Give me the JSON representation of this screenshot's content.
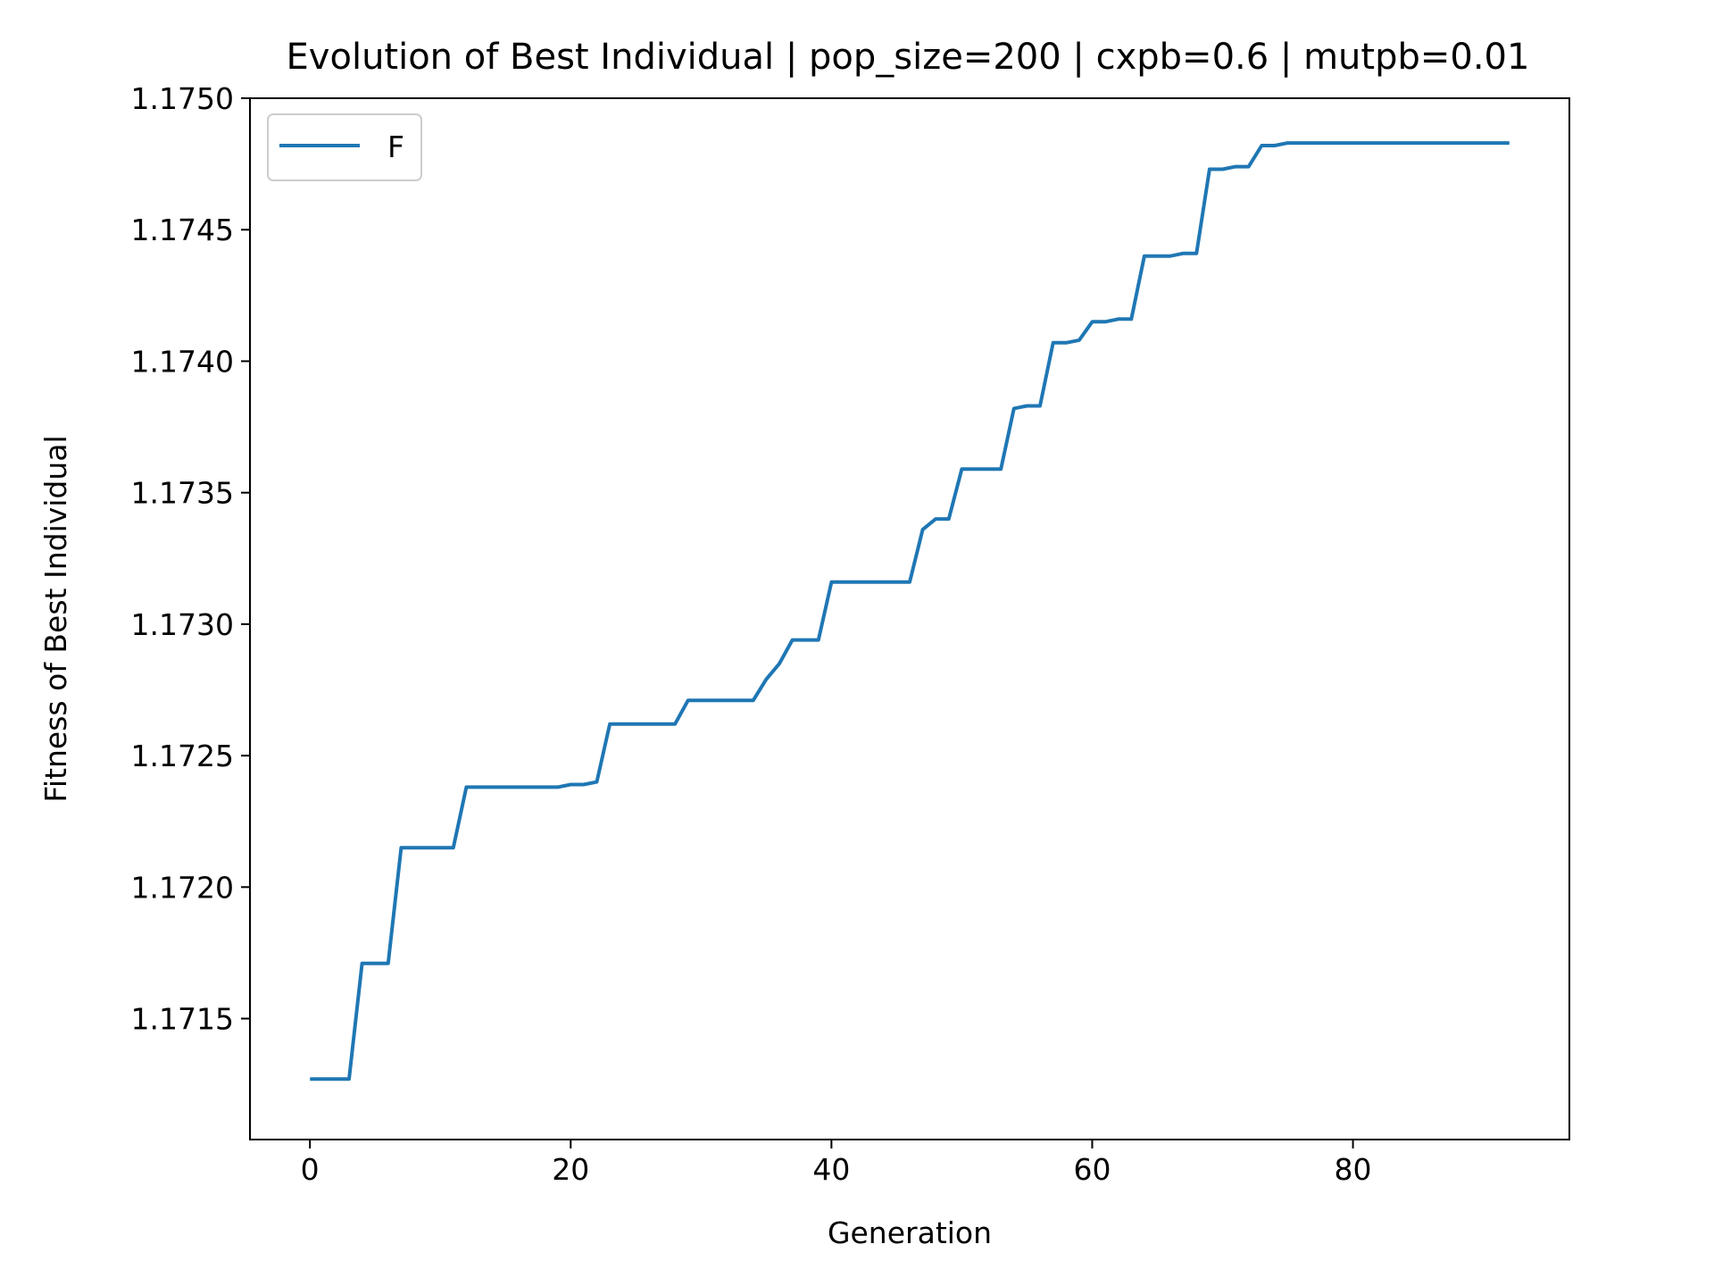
{
  "chart_data": {
    "type": "line",
    "title": "Evolution of Best Individual | pop_size=200 | cxpb=0.6 | mutpb=0.01",
    "xlabel": "Generation",
    "ylabel": "Fitness of Best Individual",
    "xlim": [
      -4.6,
      96.6
    ],
    "ylim": [
      1.17104,
      1.175
    ],
    "x_ticks": [
      0,
      20,
      40,
      60,
      80
    ],
    "y_ticks": [
      1.1715,
      1.172,
      1.1725,
      1.173,
      1.1735,
      1.174,
      1.1745,
      1.175
    ],
    "y_tick_labels": [
      "1.1715",
      "1.1720",
      "1.1725",
      "1.1730",
      "1.1735",
      "1.1740",
      "1.1745",
      "1.1750"
    ],
    "x_tick_labels": [
      "0",
      "20",
      "40",
      "60",
      "80"
    ],
    "grid": false,
    "legend_position": "top-left",
    "series": [
      {
        "name": "F",
        "color": "#1f77b4",
        "x": [
          0,
          1,
          2,
          3,
          4,
          5,
          6,
          7,
          8,
          9,
          10,
          11,
          12,
          13,
          14,
          15,
          16,
          17,
          18,
          19,
          20,
          21,
          22,
          23,
          24,
          25,
          26,
          27,
          28,
          29,
          30,
          31,
          32,
          33,
          34,
          35,
          36,
          37,
          38,
          39,
          40,
          41,
          42,
          43,
          44,
          45,
          46,
          47,
          48,
          49,
          50,
          51,
          52,
          53,
          54,
          55,
          56,
          57,
          58,
          59,
          60,
          61,
          62,
          63,
          64,
          65,
          66,
          67,
          68,
          69,
          70,
          71,
          72,
          73,
          74,
          75,
          76,
          77,
          78,
          79,
          80,
          81,
          82,
          83,
          84,
          85,
          86,
          87,
          88,
          89,
          90,
          91,
          92
        ],
        "y": [
          1.17127,
          1.17127,
          1.17127,
          1.17127,
          1.17171,
          1.17171,
          1.17171,
          1.17215,
          1.17215,
          1.17215,
          1.17215,
          1.17215,
          1.17238,
          1.17238,
          1.17238,
          1.17238,
          1.17238,
          1.17238,
          1.17238,
          1.17238,
          1.17239,
          1.17239,
          1.1724,
          1.17262,
          1.17262,
          1.17262,
          1.17262,
          1.17262,
          1.17262,
          1.17271,
          1.17271,
          1.17271,
          1.17271,
          1.17271,
          1.17271,
          1.17279,
          1.17285,
          1.17294,
          1.17294,
          1.17294,
          1.17316,
          1.17316,
          1.17316,
          1.17316,
          1.17316,
          1.17316,
          1.17316,
          1.17336,
          1.1734,
          1.1734,
          1.17359,
          1.17359,
          1.17359,
          1.17359,
          1.17382,
          1.17383,
          1.17383,
          1.17407,
          1.17407,
          1.17408,
          1.17415,
          1.17415,
          1.17416,
          1.17416,
          1.1744,
          1.1744,
          1.1744,
          1.17441,
          1.17441,
          1.17473,
          1.17473,
          1.17474,
          1.17474,
          1.17482,
          1.17482,
          1.17483,
          1.17483,
          1.17483,
          1.17483,
          1.17483,
          1.17483,
          1.17483,
          1.17483,
          1.17483,
          1.17483,
          1.17483,
          1.17483,
          1.17483,
          1.17483,
          1.17483,
          1.17483,
          1.17483,
          1.17483
        ]
      }
    ]
  }
}
